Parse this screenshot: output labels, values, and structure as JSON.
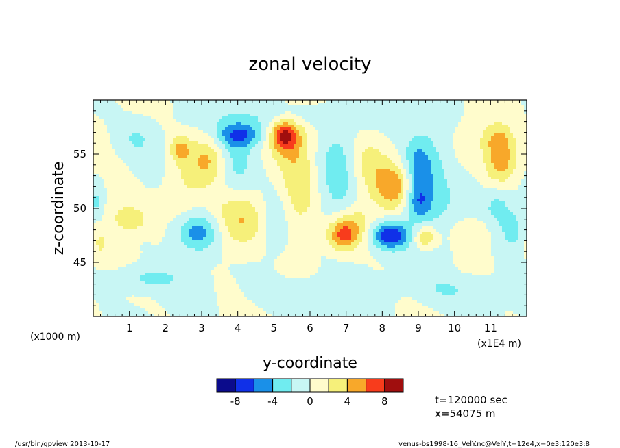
{
  "chart_data": {
    "type": "heatmap",
    "title": "zonal velocity",
    "xlabel": "y-coordinate",
    "ylabel": "z-coordinate",
    "x_units_label": "(x1E4 m)",
    "y_units_label": "(x1000 m)",
    "xlim": [
      0,
      12
    ],
    "ylim": [
      40,
      60
    ],
    "x_ticks": [
      1,
      2,
      3,
      4,
      5,
      6,
      7,
      8,
      9,
      10,
      11
    ],
    "y_ticks": [
      45,
      50,
      55
    ],
    "grid": false,
    "colorbar": {
      "levels": [
        -10,
        -8,
        -6,
        -4,
        -2,
        0,
        2,
        4,
        6,
        8,
        10
      ],
      "tick_labels": [
        "-8",
        "-4",
        "0",
        "4",
        "8"
      ],
      "tick_values": [
        -8,
        -4,
        0,
        4,
        8
      ],
      "colors": [
        "#0b0b8c",
        "#1030e8",
        "#1a90e8",
        "#70ecf0",
        "#c8f6f4",
        "#fffccc",
        "#f6f07a",
        "#f8a82a",
        "#f83c1c",
        "#a00e0e"
      ]
    },
    "blobs": [
      {
        "y": 0.6,
        "z": 49.5,
        "u": 2.0,
        "sy": 0.35,
        "sz": 1.8
      },
      {
        "y": 1.1,
        "z": 49.0,
        "u": 3.5,
        "sy": 0.25,
        "sz": 0.8
      },
      {
        "y": 0.1,
        "z": 50.5,
        "u": -2.5,
        "sy": 0.15,
        "sz": 1.0
      },
      {
        "y": 0.2,
        "z": 46.8,
        "u": 2.0,
        "sy": 0.15,
        "sz": 0.8
      },
      {
        "y": 1.2,
        "z": 56.5,
        "u": -2.0,
        "sy": 0.4,
        "sz": 1.2
      },
      {
        "y": 2.4,
        "z": 55.5,
        "u": 4.0,
        "sy": 0.2,
        "sz": 0.8
      },
      {
        "y": 2.5,
        "z": 52.5,
        "u": 2.0,
        "sy": 0.35,
        "sz": 2.5
      },
      {
        "y": 3.2,
        "z": 54.5,
        "u": 4.5,
        "sy": 0.35,
        "sz": 1.6
      },
      {
        "y": 2.9,
        "z": 47.8,
        "u": -5.5,
        "sy": 0.45,
        "sz": 1.3
      },
      {
        "y": 3.9,
        "z": 53.5,
        "u": -3.0,
        "sy": 0.45,
        "sz": 3.0
      },
      {
        "y": 4.1,
        "z": 56.8,
        "u": -5.5,
        "sy": 0.45,
        "sz": 0.8
      },
      {
        "y": 4.0,
        "z": 49.0,
        "u": 5.0,
        "sy": 0.55,
        "sz": 2.0
      },
      {
        "y": 5.3,
        "z": 56.8,
        "u": 6.5,
        "sy": 0.25,
        "sz": 1.0
      },
      {
        "y": 5.5,
        "z": 56.2,
        "u": 3.0,
        "sy": 0.45,
        "sz": 2.0
      },
      {
        "y": 5.7,
        "z": 51.5,
        "u": 3.5,
        "sy": 0.35,
        "sz": 2.5
      },
      {
        "y": 5.0,
        "z": 48.5,
        "u": -2.0,
        "sy": 0.3,
        "sz": 2.0
      },
      {
        "y": 6.8,
        "z": 53.0,
        "u": -3.0,
        "sy": 0.4,
        "sz": 3.5
      },
      {
        "y": 6.9,
        "z": 47.5,
        "u": 6.0,
        "sy": 0.3,
        "sz": 1.0
      },
      {
        "y": 7.3,
        "z": 48.5,
        "u": 3.0,
        "sy": 0.4,
        "sz": 1.3
      },
      {
        "y": 7.6,
        "z": 54.0,
        "u": 3.0,
        "sy": 0.4,
        "sz": 2.0
      },
      {
        "y": 8.3,
        "z": 52.0,
        "u": 5.0,
        "sy": 0.35,
        "sz": 1.5
      },
      {
        "y": 8.2,
        "z": 47.5,
        "u": -7.5,
        "sy": 0.4,
        "sz": 0.9
      },
      {
        "y": 9.0,
        "z": 54.0,
        "u": -4.5,
        "sy": 0.3,
        "sz": 2.0
      },
      {
        "y": 9.0,
        "z": 50.5,
        "u": -5.0,
        "sy": 0.25,
        "sz": 1.3
      },
      {
        "y": 9.2,
        "z": 47.3,
        "u": 4.5,
        "sy": 0.25,
        "sz": 0.8
      },
      {
        "y": 9.5,
        "z": 52.0,
        "u": -2.0,
        "sy": 0.35,
        "sz": 5.0
      },
      {
        "y": 10.5,
        "z": 53.5,
        "u": -2.0,
        "sy": 0.4,
        "sz": 3.0
      },
      {
        "y": 10.6,
        "z": 55.0,
        "u": 2.5,
        "sy": 0.4,
        "sz": 2.5
      },
      {
        "y": 11.3,
        "z": 54.3,
        "u": 5.5,
        "sy": 0.3,
        "sz": 1.5
      },
      {
        "y": 11.2,
        "z": 56.5,
        "u": 3.0,
        "sy": 0.3,
        "sz": 1.0
      },
      {
        "y": 11.2,
        "z": 50.0,
        "u": -3.0,
        "sy": 0.25,
        "sz": 1.3
      },
      {
        "y": 11.6,
        "z": 48.0,
        "u": -4.0,
        "sy": 0.2,
        "sz": 1.2
      },
      {
        "y": 10.4,
        "z": 48.0,
        "u": 2.0,
        "sy": 0.4,
        "sz": 1.0
      },
      {
        "y": 6.0,
        "z": 42.0,
        "u": -2.0,
        "sy": 1.0,
        "sz": 1.0
      },
      {
        "y": 1.5,
        "z": 43.5,
        "u": -2.5,
        "sy": 0.7,
        "sz": 0.8
      },
      {
        "y": 10.0,
        "z": 42.5,
        "u": -2.0,
        "sy": 0.8,
        "sz": 1.0
      },
      {
        "y": 5.5,
        "z": 58.5,
        "u": -2.0,
        "sy": 1.5,
        "sz": 0.8
      }
    ]
  },
  "annotations": {
    "time": "t=120000 sec",
    "position": "x=54075 m"
  },
  "footer": {
    "left": "/usr/bin/gpview  2013-10-17",
    "right": "venus-bs1998-16_VelY.nc@VelY,t=12e4,x=0e3:120e3:8"
  }
}
